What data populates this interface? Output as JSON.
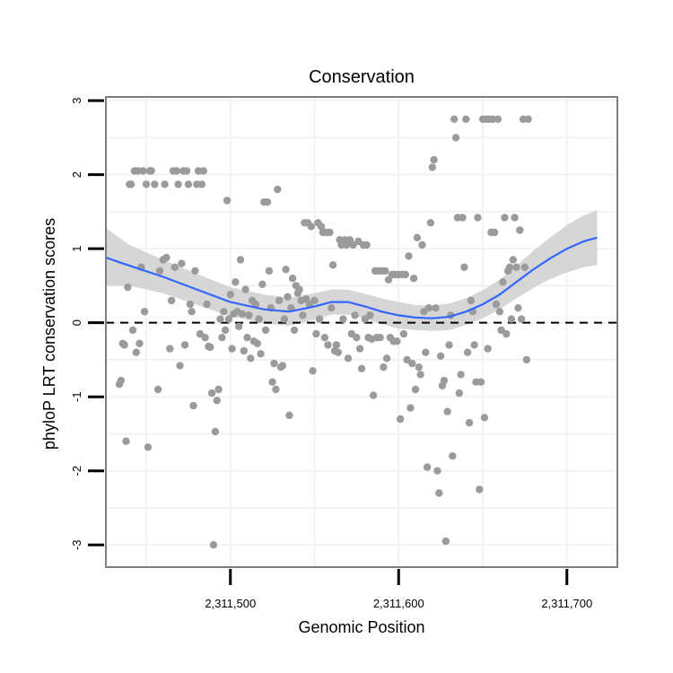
{
  "chart_data": {
    "type": "scatter",
    "title": "Conservation",
    "xlabel": "Genomic Position",
    "ylabel": "phyloP LRT conservation scores",
    "xlim": [
      2311426,
      2311730
    ],
    "ylim": [
      -3.3,
      3.05
    ],
    "x_ticks": [
      2311500,
      2311600,
      2311700
    ],
    "x_tick_labels": [
      "2,311,500",
      "2,311,600",
      "2,311,700"
    ],
    "y_ticks": [
      -3,
      -2,
      -1,
      0,
      1,
      2,
      3
    ],
    "y_tick_labels": [
      "-3",
      "-2",
      "-1",
      "0",
      "1",
      "2",
      "3"
    ],
    "reference_line": {
      "y": 0,
      "style": "dashed"
    },
    "grid": true,
    "colors": {
      "points": "#9b9b9b",
      "smooth_line": "#3366ff",
      "confidence_band": "#cccccc",
      "grid": "#f2f2f2",
      "frame": "#7f7f7f"
    },
    "points": [
      [
        2311434,
        -0.83
      ],
      [
        2311435,
        -0.78
      ],
      [
        2311436,
        -0.28
      ],
      [
        2311437,
        -0.3
      ],
      [
        2311438,
        -1.6
      ],
      [
        2311439,
        0.48
      ],
      [
        2311440,
        1.87
      ],
      [
        2311441,
        1.87
      ],
      [
        2311442,
        -0.1
      ],
      [
        2311443,
        2.05
      ],
      [
        2311444,
        -0.4
      ],
      [
        2311445,
        2.05
      ],
      [
        2311446,
        -0.28
      ],
      [
        2311447,
        0.75
      ],
      [
        2311448,
        2.05
      ],
      [
        2311449,
        0.15
      ],
      [
        2311450,
        1.87
      ],
      [
        2311451,
        -1.68
      ],
      [
        2311452,
        2.05
      ],
      [
        2311453,
        2.05
      ],
      [
        2311455,
        1.87
      ],
      [
        2311457,
        -0.9
      ],
      [
        2311458,
        0.7
      ],
      [
        2311460,
        0.85
      ],
      [
        2311461,
        1.87
      ],
      [
        2311462,
        0.88
      ],
      [
        2311464,
        -0.35
      ],
      [
        2311465,
        0.3
      ],
      [
        2311466,
        2.05
      ],
      [
        2311467,
        0.75
      ],
      [
        2311468,
        2.05
      ],
      [
        2311469,
        1.87
      ],
      [
        2311470,
        -0.58
      ],
      [
        2311471,
        0.8
      ],
      [
        2311472,
        2.05
      ],
      [
        2311473,
        -0.3
      ],
      [
        2311474,
        2.05
      ],
      [
        2311475,
        1.87
      ],
      [
        2311476,
        0.25
      ],
      [
        2311477,
        0.15
      ],
      [
        2311478,
        -1.12
      ],
      [
        2311479,
        0.7
      ],
      [
        2311480,
        1.87
      ],
      [
        2311481,
        2.05
      ],
      [
        2311482,
        -0.15
      ],
      [
        2311483,
        1.87
      ],
      [
        2311484,
        2.05
      ],
      [
        2311485,
        -0.2
      ],
      [
        2311486,
        0.25
      ],
      [
        2311487,
        -0.32
      ],
      [
        2311488,
        -0.33
      ],
      [
        2311489,
        -0.95
      ],
      [
        2311490,
        -3.0
      ],
      [
        2311491,
        -1.47
      ],
      [
        2311492,
        -1.05
      ],
      [
        2311493,
        -0.9
      ],
      [
        2311494,
        0.05
      ],
      [
        2311495,
        -0.2
      ],
      [
        2311496,
        0.15
      ],
      [
        2311497,
        -0.1
      ],
      [
        2311498,
        1.65
      ],
      [
        2311499,
        0.05
      ],
      [
        2311500,
        0.38
      ],
      [
        2311501,
        -0.35
      ],
      [
        2311502,
        0.12
      ],
      [
        2311503,
        0.55
      ],
      [
        2311504,
        0.15
      ],
      [
        2311505,
        -0.05
      ],
      [
        2311506,
        0.85
      ],
      [
        2311507,
        0.12
      ],
      [
        2311508,
        -0.38
      ],
      [
        2311509,
        0.45
      ],
      [
        2311510,
        -0.2
      ],
      [
        2311511,
        0.1
      ],
      [
        2311512,
        -0.48
      ],
      [
        2311513,
        0.3
      ],
      [
        2311514,
        -0.25
      ],
      [
        2311515,
        0.25
      ],
      [
        2311516,
        -0.28
      ],
      [
        2311517,
        0.05
      ],
      [
        2311518,
        -0.42
      ],
      [
        2311519,
        0.52
      ],
      [
        2311520,
        1.63
      ],
      [
        2311521,
        -0.1
      ],
      [
        2311522,
        1.63
      ],
      [
        2311523,
        0.7
      ],
      [
        2311524,
        0.2
      ],
      [
        2311525,
        -0.8
      ],
      [
        2311526,
        -0.55
      ],
      [
        2311527,
        -0.9
      ],
      [
        2311528,
        1.8
      ],
      [
        2311529,
        0.3
      ],
      [
        2311530,
        -0.6
      ],
      [
        2311531,
        -0.58
      ],
      [
        2311532,
        0.05
      ],
      [
        2311533,
        0.72
      ],
      [
        2311534,
        0.35
      ],
      [
        2311535,
        -1.25
      ],
      [
        2311536,
        0.2
      ],
      [
        2311537,
        0.6
      ],
      [
        2311538,
        -0.1
      ],
      [
        2311539,
        0.5
      ],
      [
        2311540,
        0.4
      ],
      [
        2311541,
        0.45
      ],
      [
        2311542,
        0.3
      ],
      [
        2311543,
        0.1
      ],
      [
        2311544,
        1.35
      ],
      [
        2311545,
        0.32
      ],
      [
        2311546,
        1.35
      ],
      [
        2311547,
        0.25
      ],
      [
        2311548,
        1.3
      ],
      [
        2311549,
        -0.65
      ],
      [
        2311550,
        0.3
      ],
      [
        2311551,
        -0.15
      ],
      [
        2311552,
        1.35
      ],
      [
        2311553,
        0.05
      ],
      [
        2311554,
        1.3
      ],
      [
        2311555,
        1.22
      ],
      [
        2311556,
        -0.2
      ],
      [
        2311557,
        1.22
      ],
      [
        2311558,
        -0.3
      ],
      [
        2311559,
        1.22
      ],
      [
        2311560,
        0.2
      ],
      [
        2311561,
        0.78
      ],
      [
        2311562,
        -0.38
      ],
      [
        2311563,
        -0.3
      ],
      [
        2311564,
        -0.4
      ],
      [
        2311565,
        1.12
      ],
      [
        2311566,
        1.05
      ],
      [
        2311567,
        0.05
      ],
      [
        2311568,
        1.12
      ],
      [
        2311569,
        1.05
      ],
      [
        2311570,
        -0.48
      ],
      [
        2311571,
        1.12
      ],
      [
        2311572,
        -0.15
      ],
      [
        2311573,
        1.05
      ],
      [
        2311574,
        0.1
      ],
      [
        2311575,
        -0.2
      ],
      [
        2311576,
        1.1
      ],
      [
        2311577,
        -0.35
      ],
      [
        2311578,
        -0.62
      ],
      [
        2311579,
        1.05
      ],
      [
        2311580,
        0.05
      ],
      [
        2311581,
        1.05
      ],
      [
        2311582,
        -0.2
      ],
      [
        2311583,
        0.1
      ],
      [
        2311584,
        -0.22
      ],
      [
        2311585,
        -0.98
      ],
      [
        2311586,
        0.7
      ],
      [
        2311587,
        -0.2
      ],
      [
        2311588,
        0.7
      ],
      [
        2311589,
        -0.2
      ],
      [
        2311590,
        0.7
      ],
      [
        2311591,
        -0.6
      ],
      [
        2311592,
        0.7
      ],
      [
        2311593,
        -0.48
      ],
      [
        2311594,
        0.58
      ],
      [
        2311595,
        -0.2
      ],
      [
        2311596,
        0.65
      ],
      [
        2311597,
        -0.25
      ],
      [
        2311598,
        0.65
      ],
      [
        2311599,
        -0.25
      ],
      [
        2311600,
        0.65
      ],
      [
        2311601,
        -1.3
      ],
      [
        2311602,
        0.65
      ],
      [
        2311603,
        -0.15
      ],
      [
        2311604,
        0.65
      ],
      [
        2311605,
        -0.5
      ],
      [
        2311606,
        0.9
      ],
      [
        2311607,
        -1.15
      ],
      [
        2311608,
        -0.55
      ],
      [
        2311609,
        0.6
      ],
      [
        2311610,
        -0.9
      ],
      [
        2311611,
        1.15
      ],
      [
        2311612,
        -0.6
      ],
      [
        2311613,
        -0.7
      ],
      [
        2311614,
        1.05
      ],
      [
        2311615,
        0.15
      ],
      [
        2311616,
        -0.4
      ],
      [
        2311617,
        -1.95
      ],
      [
        2311618,
        0.2
      ],
      [
        2311619,
        1.35
      ],
      [
        2311620,
        2.1
      ],
      [
        2311621,
        2.2
      ],
      [
        2311622,
        0.2
      ],
      [
        2311623,
        -2.0
      ],
      [
        2311624,
        -2.3
      ],
      [
        2311625,
        -0.45
      ],
      [
        2311626,
        -0.85
      ],
      [
        2311627,
        -0.78
      ],
      [
        2311628,
        -2.95
      ],
      [
        2311629,
        -1.2
      ],
      [
        2311630,
        -0.3
      ],
      [
        2311631,
        0.1
      ],
      [
        2311632,
        -1.8
      ],
      [
        2311633,
        2.75
      ],
      [
        2311634,
        2.5
      ],
      [
        2311635,
        1.42
      ],
      [
        2311636,
        -0.95
      ],
      [
        2311637,
        -0.7
      ],
      [
        2311638,
        1.42
      ],
      [
        2311639,
        0.75
      ],
      [
        2311640,
        2.75
      ],
      [
        2311641,
        -0.4
      ],
      [
        2311642,
        -1.35
      ],
      [
        2311643,
        0.3
      ],
      [
        2311644,
        0.15
      ],
      [
        2311645,
        -0.3
      ],
      [
        2311646,
        -0.8
      ],
      [
        2311647,
        1.42
      ],
      [
        2311648,
        -2.25
      ],
      [
        2311649,
        -0.8
      ],
      [
        2311650,
        2.75
      ],
      [
        2311651,
        -1.28
      ],
      [
        2311652,
        2.75
      ],
      [
        2311653,
        -0.35
      ],
      [
        2311654,
        2.75
      ],
      [
        2311655,
        1.22
      ],
      [
        2311656,
        2.75
      ],
      [
        2311657,
        1.22
      ],
      [
        2311658,
        0.25
      ],
      [
        2311659,
        2.75
      ],
      [
        2311660,
        0.15
      ],
      [
        2311661,
        -0.1
      ],
      [
        2311662,
        0.55
      ],
      [
        2311663,
        1.42
      ],
      [
        2311664,
        -0.15
      ],
      [
        2311665,
        0.7
      ],
      [
        2311666,
        0.75
      ],
      [
        2311667,
        0.05
      ],
      [
        2311668,
        0.85
      ],
      [
        2311669,
        1.42
      ],
      [
        2311670,
        0.75
      ],
      [
        2311671,
        0.2
      ],
      [
        2311672,
        1.25
      ],
      [
        2311673,
        0.05
      ],
      [
        2311674,
        2.75
      ],
      [
        2311675,
        0.75
      ],
      [
        2311676,
        -0.5
      ],
      [
        2311677,
        2.75
      ]
    ],
    "smooth_curve": [
      [
        2311426,
        0.88
      ],
      [
        2311440,
        0.77
      ],
      [
        2311460,
        0.62
      ],
      [
        2311480,
        0.45
      ],
      [
        2311500,
        0.28
      ],
      [
        2311520,
        0.18
      ],
      [
        2311535,
        0.15
      ],
      [
        2311550,
        0.22
      ],
      [
        2311560,
        0.28
      ],
      [
        2311570,
        0.28
      ],
      [
        2311580,
        0.22
      ],
      [
        2311590,
        0.15
      ],
      [
        2311600,
        0.1
      ],
      [
        2311610,
        0.07
      ],
      [
        2311620,
        0.06
      ],
      [
        2311630,
        0.08
      ],
      [
        2311640,
        0.15
      ],
      [
        2311650,
        0.25
      ],
      [
        2311660,
        0.38
      ],
      [
        2311670,
        0.55
      ],
      [
        2311680,
        0.72
      ],
      [
        2311690,
        0.87
      ],
      [
        2311700,
        1.0
      ],
      [
        2311710,
        1.1
      ],
      [
        2311718,
        1.15
      ]
    ],
    "band_upper": [
      [
        2311426,
        1.28
      ],
      [
        2311440,
        1.05
      ],
      [
        2311460,
        0.85
      ],
      [
        2311480,
        0.66
      ],
      [
        2311500,
        0.48
      ],
      [
        2311520,
        0.38
      ],
      [
        2311535,
        0.34
      ],
      [
        2311550,
        0.4
      ],
      [
        2311560,
        0.45
      ],
      [
        2311570,
        0.45
      ],
      [
        2311580,
        0.39
      ],
      [
        2311590,
        0.33
      ],
      [
        2311600,
        0.28
      ],
      [
        2311610,
        0.24
      ],
      [
        2311620,
        0.23
      ],
      [
        2311630,
        0.26
      ],
      [
        2311640,
        0.33
      ],
      [
        2311650,
        0.44
      ],
      [
        2311660,
        0.58
      ],
      [
        2311670,
        0.77
      ],
      [
        2311680,
        0.97
      ],
      [
        2311690,
        1.15
      ],
      [
        2311700,
        1.32
      ],
      [
        2311710,
        1.45
      ],
      [
        2311718,
        1.52
      ]
    ],
    "band_lower": [
      [
        2311426,
        0.5
      ],
      [
        2311440,
        0.5
      ],
      [
        2311460,
        0.4
      ],
      [
        2311480,
        0.24
      ],
      [
        2311500,
        0.09
      ],
      [
        2311520,
        -0.01
      ],
      [
        2311535,
        -0.04
      ],
      [
        2311550,
        0.04
      ],
      [
        2311560,
        0.11
      ],
      [
        2311570,
        0.11
      ],
      [
        2311580,
        0.06
      ],
      [
        2311590,
        -0.02
      ],
      [
        2311600,
        -0.08
      ],
      [
        2311610,
        -0.1
      ],
      [
        2311620,
        -0.11
      ],
      [
        2311630,
        -0.1
      ],
      [
        2311640,
        -0.03
      ],
      [
        2311650,
        0.06
      ],
      [
        2311660,
        0.18
      ],
      [
        2311670,
        0.33
      ],
      [
        2311680,
        0.47
      ],
      [
        2311690,
        0.59
      ],
      [
        2311700,
        0.68
      ],
      [
        2311710,
        0.75
      ],
      [
        2311718,
        0.78
      ]
    ]
  }
}
